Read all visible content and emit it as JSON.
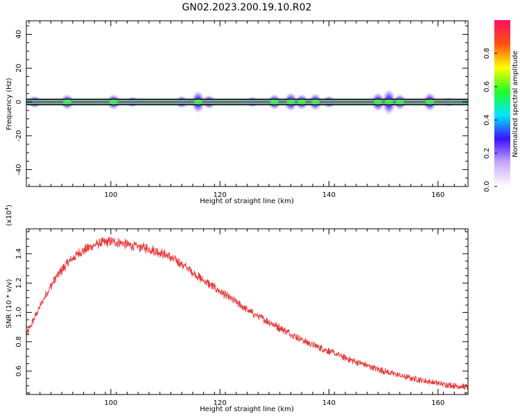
{
  "title": "GN02.2023.200.19.10.R02",
  "colors": {
    "series": "#ee3333",
    "axis": "#000000",
    "band_center": "#e03050",
    "band_outline": "#000000"
  },
  "chart_data": [
    {
      "type": "heatmap",
      "xlabel": "Height of straight line (km)",
      "ylabel": "Frequency (Hz)",
      "xlim": [
        84.5,
        165.5
      ],
      "ylim": [
        -50,
        48
      ],
      "xticks": [
        100,
        120,
        140,
        160
      ],
      "yticks": [
        -40,
        -20,
        0,
        20,
        40
      ],
      "xtick_labels": [
        "100",
        "120",
        "140",
        "160"
      ],
      "ytick_labels": [
        "-40",
        "-20",
        "0",
        "20",
        "40"
      ],
      "colorbar": {
        "label": "Normalized spectral amplitude",
        "range": [
          0,
          1
        ],
        "ticks": [
          0.0,
          0.2,
          0.4,
          0.6,
          0.8
        ],
        "tick_labels": [
          "0.0",
          "0.2",
          "0.4",
          "0.6",
          "0.8"
        ],
        "colormap": [
          "#ffffff",
          "#c8a8ff",
          "#3a10ff",
          "#00e8ff",
          "#20ff20",
          "#ffff00",
          "#ff5010",
          "#ff1060"
        ]
      },
      "band_center_hz": 0,
      "band_halfwidth_hz": 1.5,
      "spread_blobs": [
        {
          "height_km": 86,
          "halfwidth_hz": 3
        },
        {
          "height_km": 92,
          "halfwidth_hz": 4
        },
        {
          "height_km": 100.5,
          "halfwidth_hz": 4
        },
        {
          "height_km": 104,
          "halfwidth_hz": 2.5
        },
        {
          "height_km": 113,
          "halfwidth_hz": 3
        },
        {
          "height_km": 116,
          "halfwidth_hz": 6
        },
        {
          "height_km": 118,
          "halfwidth_hz": 3.5
        },
        {
          "height_km": 126,
          "halfwidth_hz": 2.5
        },
        {
          "height_km": 130,
          "halfwidth_hz": 4
        },
        {
          "height_km": 133,
          "halfwidth_hz": 5
        },
        {
          "height_km": 135,
          "halfwidth_hz": 4
        },
        {
          "height_km": 137.5,
          "halfwidth_hz": 4.5
        },
        {
          "height_km": 140,
          "halfwidth_hz": 3
        },
        {
          "height_km": 149,
          "halfwidth_hz": 5
        },
        {
          "height_km": 151,
          "halfwidth_hz": 7
        },
        {
          "height_km": 153,
          "halfwidth_hz": 4
        },
        {
          "height_km": 158.5,
          "halfwidth_hz": 5
        },
        {
          "height_km": 162,
          "halfwidth_hz": 2
        }
      ]
    },
    {
      "type": "line",
      "xlabel": "Height of straight line (km)",
      "ylabel": "SNR (10 * v/v)",
      "y_multiplier_label": "(x10",
      "y_multiplier_exp": "4",
      "y_multiplier_close": ")",
      "xlim": [
        84.5,
        165.5
      ],
      "ylim": [
        0.44,
        1.57
      ],
      "xticks": [
        100,
        120,
        140,
        160
      ],
      "yticks": [
        0.6,
        0.8,
        1.0,
        1.2,
        1.4
      ],
      "xtick_labels": [
        "100",
        "120",
        "140",
        "160"
      ],
      "ytick_labels": [
        "0.6",
        "0.8",
        "1.0",
        "1.2",
        "1.4"
      ],
      "series": [
        {
          "x": [
            84.5,
            86,
            88,
            90,
            92,
            94,
            96,
            98,
            100,
            102,
            104,
            106,
            108,
            110,
            112,
            114,
            116,
            118,
            120,
            122,
            124,
            126,
            128,
            130,
            132,
            134,
            136,
            138,
            140,
            142,
            144,
            146,
            148,
            150,
            152,
            154,
            156,
            158,
            160,
            162,
            164,
            165.5
          ],
          "y": [
            0.85,
            0.97,
            1.12,
            1.25,
            1.34,
            1.41,
            1.45,
            1.48,
            1.49,
            1.48,
            1.46,
            1.45,
            1.43,
            1.4,
            1.36,
            1.31,
            1.25,
            1.2,
            1.15,
            1.1,
            1.05,
            1.0,
            0.96,
            0.92,
            0.88,
            0.84,
            0.8,
            0.77,
            0.74,
            0.71,
            0.68,
            0.655,
            0.63,
            0.605,
            0.585,
            0.565,
            0.55,
            0.535,
            0.52,
            0.51,
            0.5,
            0.495
          ],
          "noise_amplitude": 0.03
        }
      ]
    }
  ]
}
